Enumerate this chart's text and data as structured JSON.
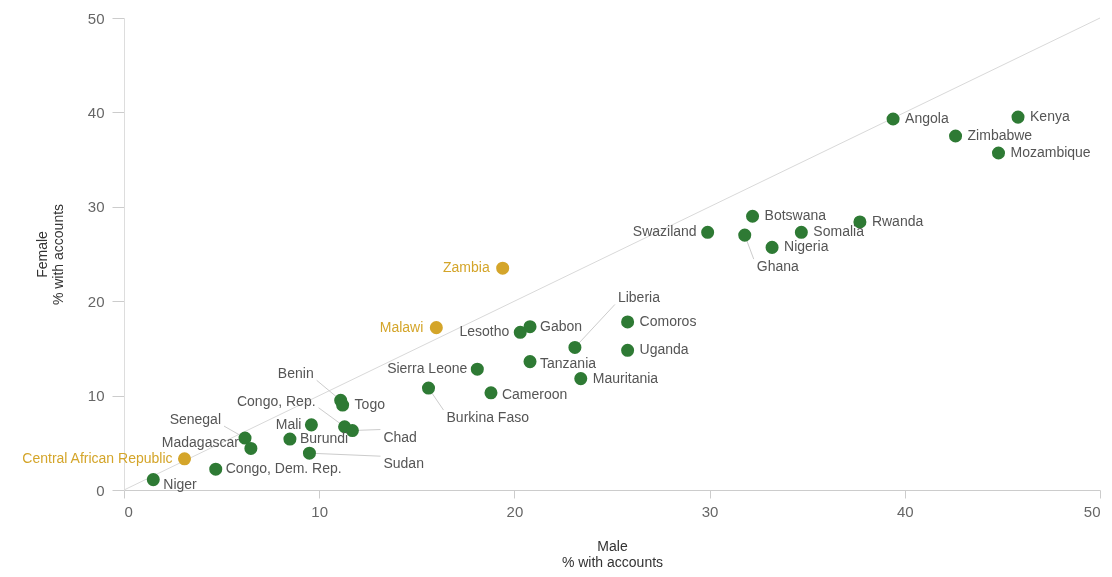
{
  "chart_data": {
    "type": "scatter",
    "xlabel": "Male\n% with accounts",
    "ylabel": "Female\n% with accounts",
    "xlim": [
      0,
      50
    ],
    "ylim": [
      0,
      50
    ],
    "xticks": [
      0,
      10,
      20,
      30,
      40,
      50
    ],
    "yticks": [
      0,
      10,
      20,
      30,
      40,
      50
    ],
    "grid": false,
    "series": [
      {
        "type": "line",
        "color": "#d9d9d9",
        "x": [
          0,
          50
        ],
        "values": [
          0,
          50
        ]
      },
      {
        "marker": "circle",
        "x": [
          45.8,
          39.4,
          42.6,
          44.8,
          37.7,
          32.2,
          34.7,
          29.9,
          31.8,
          33.2,
          19.4,
          23.1,
          25.8,
          25.8,
          23.4,
          20.8,
          20.8,
          20.3,
          16.0,
          18.1,
          18.8,
          15.6,
          11.1,
          11.2,
          11.3,
          11.7,
          9.6,
          8.5,
          9.5,
          6.2,
          6.5,
          3.1,
          4.7,
          1.5
        ],
        "values": [
          39.5,
          39.3,
          37.5,
          35.7,
          28.4,
          29.0,
          27.3,
          27.3,
          27.0,
          25.7,
          23.5,
          15.1,
          17.8,
          14.8,
          11.8,
          13.6,
          17.3,
          16.7,
          17.2,
          12.8,
          10.3,
          10.8,
          9.5,
          9.0,
          6.7,
          6.3,
          6.9,
          5.4,
          3.9,
          5.5,
          4.4,
          3.3,
          2.2,
          1.1
        ],
        "colors": [
          "#2e7a34",
          "#2e7a34",
          "#2e7a34",
          "#2e7a34",
          "#2e7a34",
          "#2e7a34",
          "#2e7a34",
          "#2e7a34",
          "#2e7a34",
          "#2e7a34",
          "#d4a52a",
          "#2e7a34",
          "#2e7a34",
          "#2e7a34",
          "#2e7a34",
          "#2e7a34",
          "#2e7a34",
          "#2e7a34",
          "#d4a52a",
          "#2e7a34",
          "#2e7a34",
          "#2e7a34",
          "#2e7a34",
          "#2e7a34",
          "#2e7a34",
          "#2e7a34",
          "#2e7a34",
          "#2e7a34",
          "#2e7a34",
          "#2e7a34",
          "#2e7a34",
          "#d4a52a",
          "#2e7a34",
          "#2e7a34"
        ]
      }
    ],
    "annotations": [
      {
        "text": "Kenya",
        "x": 45.8,
        "y": 39.5
      },
      {
        "text": "Angola",
        "x": 39.4,
        "y": 39.3
      },
      {
        "text": "Zimbabwe",
        "x": 42.6,
        "y": 37.5
      },
      {
        "text": "Mozambique",
        "x": 44.8,
        "y": 35.7
      },
      {
        "text": "Rwanda",
        "x": 37.7,
        "y": 28.4
      },
      {
        "text": "Botswana",
        "x": 32.2,
        "y": 29.0
      },
      {
        "text": "Somalia",
        "x": 34.7,
        "y": 27.3
      },
      {
        "text": "Swaziland",
        "x": 29.9,
        "y": 27.3
      },
      {
        "text": "Ghana",
        "x": 31.8,
        "y": 27.0
      },
      {
        "text": "Nigeria",
        "x": 33.2,
        "y": 25.7
      },
      {
        "text": "Zambia",
        "x": 19.4,
        "y": 23.5
      },
      {
        "text": "Liberia",
        "x": 23.1,
        "y": 15.1
      },
      {
        "text": "Comoros",
        "x": 25.8,
        "y": 17.8
      },
      {
        "text": "Uganda",
        "x": 25.8,
        "y": 14.8
      },
      {
        "text": "Mauritania",
        "x": 23.4,
        "y": 11.8
      },
      {
        "text": "Tanzania",
        "x": 20.8,
        "y": 13.6
      },
      {
        "text": "Gabon",
        "x": 20.8,
        "y": 17.3
      },
      {
        "text": "Lesotho",
        "x": 20.3,
        "y": 16.7
      },
      {
        "text": "Malawi",
        "x": 16.0,
        "y": 17.2
      },
      {
        "text": "Sierra Leone",
        "x": 18.1,
        "y": 12.8
      },
      {
        "text": "Cameroon",
        "x": 18.8,
        "y": 10.3
      },
      {
        "text": "Burkina Faso",
        "x": 15.6,
        "y": 10.8
      },
      {
        "text": "Benin",
        "x": 11.1,
        "y": 9.5
      },
      {
        "text": "Togo",
        "x": 11.2,
        "y": 9.0
      },
      {
        "text": "Congo, Rep.",
        "x": 11.3,
        "y": 6.7
      },
      {
        "text": "Chad",
        "x": 11.7,
        "y": 6.3
      },
      {
        "text": "Mali",
        "x": 9.6,
        "y": 6.9
      },
      {
        "text": "Burundi",
        "x": 8.5,
        "y": 5.4
      },
      {
        "text": "Sudan",
        "x": 9.5,
        "y": 3.9
      },
      {
        "text": "Senegal",
        "x": 6.2,
        "y": 5.5
      },
      {
        "text": "Madagascar",
        "x": 6.5,
        "y": 4.4
      },
      {
        "text": "Central African Republic",
        "x": 3.1,
        "y": 3.3
      },
      {
        "text": "Congo, Dem. Rep.",
        "x": 4.7,
        "y": 2.2
      },
      {
        "text": "Niger",
        "x": 1.5,
        "y": 1.1
      }
    ]
  }
}
